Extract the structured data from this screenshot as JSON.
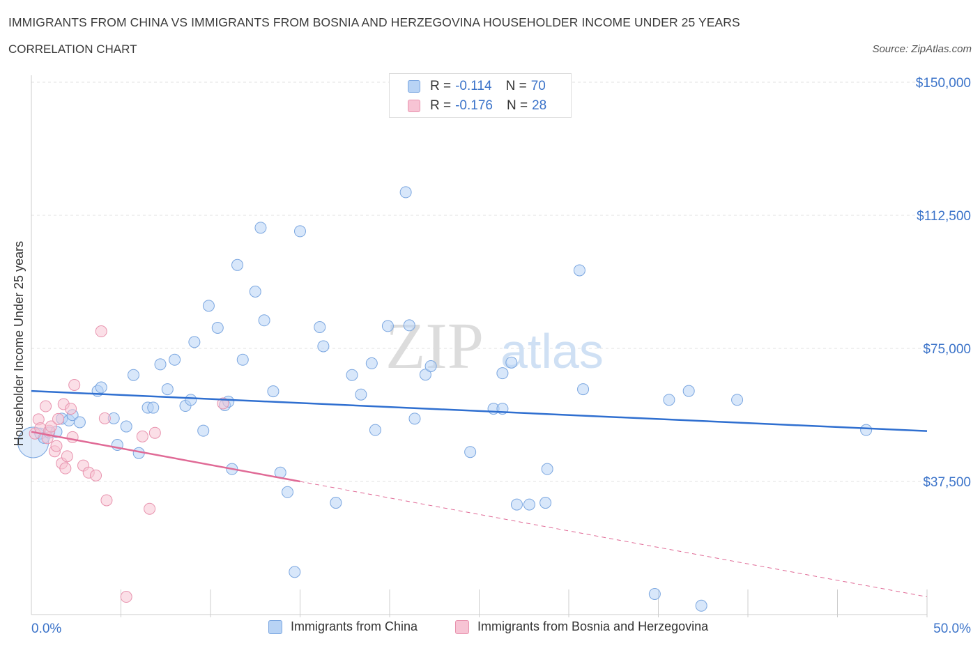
{
  "header": {
    "title": "IMMIGRANTS FROM CHINA VS IMMIGRANTS FROM BOSNIA AND HERZEGOVINA HOUSEHOLDER INCOME UNDER 25 YEARS",
    "subtitle": "CORRELATION CHART",
    "source": "Source: ZipAtlas.com"
  },
  "watermark": {
    "zip": "ZIP",
    "atlas": "atlas"
  },
  "legend_top": {
    "rows": [
      {
        "r_label": "R =",
        "r_value": "-0.114",
        "n_label": "N =",
        "n_value": "70"
      },
      {
        "r_label": "R =",
        "r_value": "-0.176",
        "n_label": "N =",
        "n_value": "28"
      }
    ]
  },
  "legend_bottom": {
    "china": "Immigrants from China",
    "bosnia": "Immigrants from Bosnia and Herzegovina"
  },
  "colors": {
    "china_fill": "#b8d3f5",
    "china_stroke": "#7aa6e0",
    "china_line": "#2f6fd0",
    "bosnia_fill": "#f7c4d4",
    "bosnia_stroke": "#e893ae",
    "bosnia_line": "#e06a96",
    "axis_text": "#3b73c9",
    "grid": "#e2e2e2"
  },
  "chart_data": {
    "type": "scatter",
    "title": "IMMIGRANTS FROM CHINA VS IMMIGRANTS FROM BOSNIA AND HERZEGOVINA HOUSEHOLDER INCOME UNDER 25 YEARS",
    "xlabel": "",
    "ylabel": "Householder Income Under 25 years",
    "xlim": [
      0,
      50
    ],
    "ylim": [
      0,
      150000
    ],
    "x_tick_labels": [
      "0.0%",
      "50.0%"
    ],
    "y_ticks": [
      37500,
      75000,
      112500,
      150000
    ],
    "y_tick_labels": [
      "$37,500",
      "$75,000",
      "$112,500",
      "$150,000"
    ],
    "grid": true,
    "legend_position": "top-center",
    "series": [
      {
        "name": "Immigrants from China",
        "r": -0.114,
        "n": 70,
        "trend": {
          "x": [
            0,
            50
          ],
          "y": [
            63000,
            51700
          ]
        },
        "points": [
          [
            0.1,
            48500
          ],
          [
            0.5,
            51000
          ],
          [
            0.7,
            49800
          ],
          [
            1.0,
            51300
          ],
          [
            1.4,
            51500
          ],
          [
            1.7,
            55200
          ],
          [
            2.1,
            54700
          ],
          [
            2.3,
            56200
          ],
          [
            2.7,
            54200
          ],
          [
            3.7,
            63000
          ],
          [
            3.9,
            64000
          ],
          [
            4.6,
            55300
          ],
          [
            4.8,
            47800
          ],
          [
            5.3,
            53000
          ],
          [
            5.7,
            67500
          ],
          [
            6.0,
            45500
          ],
          [
            6.5,
            58300
          ],
          [
            6.8,
            58300
          ],
          [
            7.2,
            70500
          ],
          [
            7.6,
            63500
          ],
          [
            8.0,
            71800
          ],
          [
            8.6,
            58800
          ],
          [
            8.9,
            60500
          ],
          [
            9.1,
            76800
          ],
          [
            9.6,
            51800
          ],
          [
            9.9,
            87000
          ],
          [
            10.4,
            80800
          ],
          [
            10.8,
            59000
          ],
          [
            11.0,
            60000
          ],
          [
            11.2,
            41000
          ],
          [
            11.5,
            98500
          ],
          [
            11.8,
            71800
          ],
          [
            12.5,
            91000
          ],
          [
            12.8,
            109000
          ],
          [
            13.0,
            82900
          ],
          [
            13.5,
            62900
          ],
          [
            13.9,
            40000
          ],
          [
            14.3,
            34500
          ],
          [
            14.7,
            12000
          ],
          [
            15.0,
            108000
          ],
          [
            16.1,
            81000
          ],
          [
            16.3,
            75600
          ],
          [
            17.0,
            31500
          ],
          [
            17.9,
            67500
          ],
          [
            18.4,
            62000
          ],
          [
            19.0,
            70800
          ],
          [
            19.2,
            52000
          ],
          [
            19.9,
            81300
          ],
          [
            20.9,
            119000
          ],
          [
            21.1,
            81500
          ],
          [
            21.4,
            55200
          ],
          [
            22.0,
            67600
          ],
          [
            22.3,
            70000
          ],
          [
            24.5,
            45800
          ],
          [
            25.8,
            58000
          ],
          [
            26.3,
            58000
          ],
          [
            26.3,
            68000
          ],
          [
            26.8,
            71000
          ],
          [
            27.1,
            31000
          ],
          [
            27.8,
            31000
          ],
          [
            28.7,
            31500
          ],
          [
            28.8,
            41000
          ],
          [
            30.6,
            97000
          ],
          [
            30.8,
            63500
          ],
          [
            34.8,
            5800
          ],
          [
            35.6,
            60500
          ],
          [
            36.7,
            63000
          ],
          [
            39.4,
            60500
          ],
          [
            46.6,
            52000
          ],
          [
            37.4,
            2500
          ]
        ]
      },
      {
        "name": "Immigrants from Bosnia and Herzegovina",
        "r": -0.176,
        "n": 28,
        "trend": {
          "x": [
            0,
            15
          ],
          "y": [
            51500,
            37500
          ],
          "dashed_extension": {
            "x": [
              15,
              50
            ],
            "y": [
              37500,
              5000
            ]
          }
        },
        "points": [
          [
            0.2,
            51000
          ],
          [
            0.4,
            55000
          ],
          [
            0.5,
            52500
          ],
          [
            0.8,
            58700
          ],
          [
            0.9,
            49700
          ],
          [
            1.0,
            51800
          ],
          [
            1.1,
            53000
          ],
          [
            1.3,
            46000
          ],
          [
            1.4,
            47500
          ],
          [
            1.5,
            55100
          ],
          [
            1.7,
            42600
          ],
          [
            1.8,
            59300
          ],
          [
            1.9,
            41200
          ],
          [
            2.0,
            44600
          ],
          [
            2.2,
            58000
          ],
          [
            2.3,
            50000
          ],
          [
            2.4,
            64700
          ],
          [
            2.9,
            42000
          ],
          [
            3.2,
            40000
          ],
          [
            3.6,
            39200
          ],
          [
            4.1,
            55300
          ],
          [
            4.2,
            32200
          ],
          [
            5.3,
            5000
          ],
          [
            6.2,
            50200
          ],
          [
            6.6,
            29800
          ],
          [
            6.9,
            51200
          ],
          [
            10.7,
            59500
          ],
          [
            3.9,
            79800
          ]
        ]
      }
    ]
  }
}
